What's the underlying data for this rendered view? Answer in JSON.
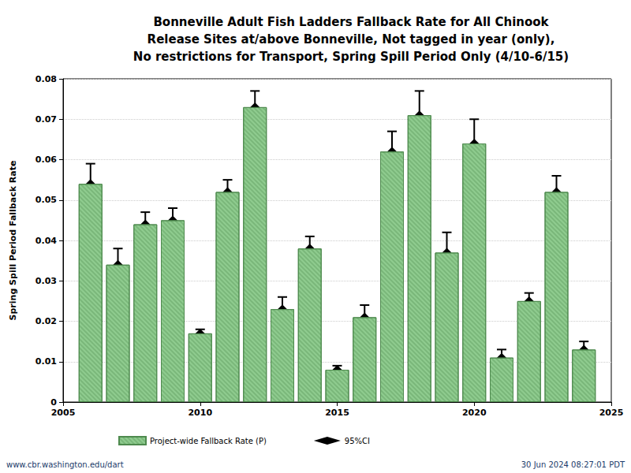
{
  "chart_data": {
    "type": "bar",
    "title": "Bonneville Adult Fish Ladders Fallback Rate for All Chinook\nRelease Sites at/above Bonneville, Not tagged in year (only),\nNo restrictions for Transport, Spring Spill Period Only (4/10-6/15)",
    "y_label": "Spring Spill Period Fallback Rate",
    "x": [
      2006,
      2007,
      2008,
      2009,
      2010,
      2011,
      2012,
      2013,
      2014,
      2015,
      2016,
      2017,
      2018,
      2019,
      2020,
      2021,
      2022,
      2023,
      2024
    ],
    "series": [
      {
        "name": "Project-wide Fallback Rate (P)",
        "color": "#8fcc8f",
        "values": [
          0.054,
          0.034,
          0.044,
          0.045,
          0.017,
          0.052,
          0.073,
          0.023,
          0.038,
          0.008,
          0.021,
          0.062,
          0.071,
          0.037,
          0.064,
          0.011,
          0.025,
          0.052,
          0.013
        ]
      }
    ],
    "error_bars": {
      "name": "95%CI",
      "color": "#000000",
      "lower": [
        0.049,
        0.03,
        0.041,
        0.042,
        0.0165,
        0.049,
        0.069,
        0.02,
        0.035,
        0.007,
        0.018,
        0.057,
        0.065,
        0.032,
        0.058,
        0.009,
        0.023,
        0.048,
        0.011
      ],
      "upper": [
        0.059,
        0.038,
        0.047,
        0.048,
        0.018,
        0.055,
        0.077,
        0.026,
        0.041,
        0.009,
        0.024,
        0.067,
        0.077,
        0.042,
        0.07,
        0.013,
        0.027,
        0.056,
        0.015
      ]
    },
    "xlim": [
      2005,
      2025
    ],
    "xticks": [
      2005,
      2010,
      2015,
      2020,
      2025
    ],
    "ylim": [
      0,
      0.08
    ],
    "yticks": [
      0,
      0.01,
      0.02,
      0.03,
      0.04,
      0.05,
      0.06,
      0.07,
      0.08
    ],
    "grid": true,
    "legend": "bottom",
    "annotations": [
      "www.cbr.washington.edu/dart",
      "30 Jun 2024 08:27:01 PDT"
    ]
  }
}
